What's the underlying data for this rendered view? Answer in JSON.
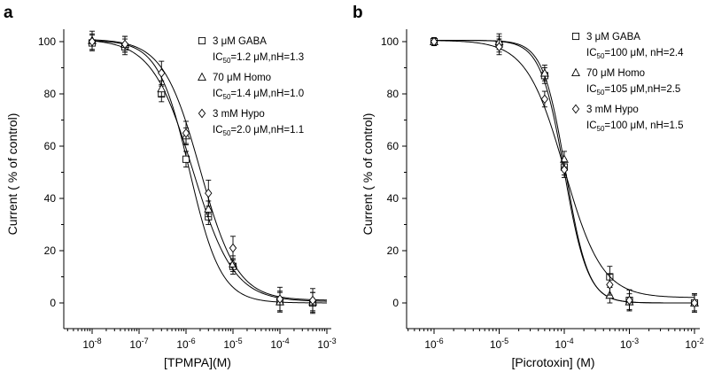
{
  "chart_data": [
    {
      "type": "scatter",
      "panel_label": "a",
      "xlabel": "[TPMPA](M)",
      "ylabel": "Current ( % of control)",
      "xscale": "log",
      "xlim": [
        1e-08,
        0.001
      ],
      "ylim": [
        0,
        100
      ],
      "xticks": [
        "10-8",
        "10-7",
        "10-6",
        "10-5",
        "10-4",
        "10-3"
      ],
      "yticks": [
        0,
        20,
        40,
        60,
        80,
        100
      ],
      "legend_position": "top-right",
      "series": [
        {
          "name": "3 μM GABA",
          "ic50_label": "IC50=1.2 μM,nH=1.3",
          "marker": "square",
          "fit": {
            "top": 100.5,
            "bottom": 0,
            "ic50": 1.2e-06,
            "nh": 1.3
          },
          "x": [
            1e-08,
            5e-08,
            3e-07,
            1e-06,
            3e-06,
            1e-05,
            0.0001,
            0.0005
          ],
          "y": [
            99.5,
            98,
            80,
            55,
            33,
            14,
            0.5,
            0
          ],
          "err": [
            3,
            3,
            3,
            3,
            3,
            3,
            4,
            4
          ]
        },
        {
          "name": "70 μM Homo",
          "ic50_label": "IC50=1.4 μM,nH=1.0",
          "marker": "triangle",
          "fit": {
            "top": 101,
            "bottom": 0.5,
            "ic50": 1.4e-06,
            "nh": 1.0
          },
          "x": [
            1e-08,
            5e-08,
            3e-07,
            1e-06,
            3e-06,
            1e-05,
            0.0001,
            0.0005
          ],
          "y": [
            100.5,
            99,
            82,
            64,
            36,
            15,
            0.5,
            0.5
          ],
          "err": [
            3.5,
            3,
            3,
            3,
            3,
            3,
            3.5,
            3.5
          ]
        },
        {
          "name": "3 mM Hypo",
          "ic50_label": "IC50=2.0 μM,nH=1.1",
          "marker": "diamond",
          "fit": {
            "top": 101,
            "bottom": 1,
            "ic50": 2e-06,
            "nh": 1.1
          },
          "x": [
            1e-08,
            5e-08,
            3e-07,
            1e-06,
            3e-06,
            1e-05,
            0.0001,
            0.0005
          ],
          "y": [
            100,
            99,
            88,
            65,
            42,
            21,
            1.5,
            1
          ],
          "err": [
            3,
            3,
            4.5,
            4.5,
            5,
            4.5,
            4.5,
            4.5
          ]
        }
      ]
    },
    {
      "type": "scatter",
      "panel_label": "b",
      "xlabel": "[Picrotoxin] (M)",
      "ylabel": "Current ( % of control)",
      "xscale": "log",
      "xlim": [
        1e-06,
        0.01
      ],
      "ylim": [
        0,
        100
      ],
      "xticks": [
        "10-6",
        "10-5",
        "10-4",
        "10-3",
        "10-2"
      ],
      "yticks": [
        0,
        20,
        40,
        60,
        80,
        100
      ],
      "legend_position": "top-right",
      "series": [
        {
          "name": "3 μM GABA",
          "ic50_label": "IC50=100 μM, nH=2.4",
          "marker": "square",
          "fit": {
            "top": 100.5,
            "bottom": 0,
            "ic50": 0.0001,
            "nh": 2.4
          },
          "x": [
            1e-06,
            1e-05,
            5e-05,
            0.0001,
            0.0005,
            0.001,
            0.01
          ],
          "y": [
            100,
            99,
            87,
            52,
            10,
            1,
            0
          ],
          "err": [
            1.5,
            3,
            3,
            3,
            4,
            4,
            3.5
          ]
        },
        {
          "name": "70 μM Homo",
          "ic50_label": "IC50=105 μM,nH=2.5",
          "marker": "triangle",
          "fit": {
            "top": 100.5,
            "bottom": 0,
            "ic50": 0.000105,
            "nh": 2.5
          },
          "x": [
            1e-06,
            1e-05,
            5e-05,
            0.0001,
            0.0005,
            0.001,
            0.01
          ],
          "y": [
            100,
            100,
            88,
            55,
            3,
            0.5,
            0
          ],
          "err": [
            1.5,
            3,
            3,
            3,
            3,
            3,
            3
          ]
        },
        {
          "name": "3 mM Hypo",
          "ic50_label": "IC50=100 μM, nH=1.5",
          "marker": "diamond",
          "fit": {
            "top": 100.5,
            "bottom": 2,
            "ic50": 0.0001,
            "nh": 1.5
          },
          "x": [
            1e-06,
            1e-05,
            5e-05,
            0.0001,
            0.0005,
            0.001,
            0.01
          ],
          "y": [
            100,
            98,
            78,
            51,
            7,
            1,
            0
          ],
          "err": [
            1.5,
            3,
            3,
            3,
            4,
            4,
            3.5
          ]
        }
      ]
    }
  ]
}
